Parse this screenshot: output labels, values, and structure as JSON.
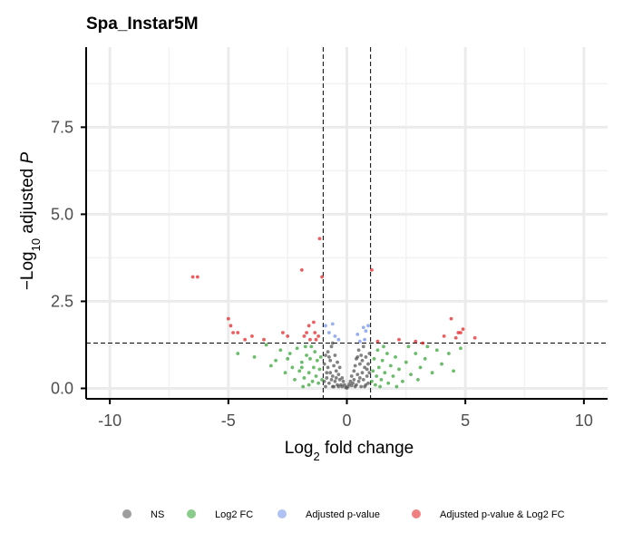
{
  "chart_data": {
    "type": "scatter",
    "title": "Spa_Instar5M",
    "xlabel": "Log",
    "xlabel_sub": "2",
    "xlabel_suffix": " fold change",
    "ylabel_prefix": "−Log",
    "ylabel_sub": "10",
    "ylabel_middle": " adjusted ",
    "ylabel_italic": "P",
    "xlim": [
      -11,
      11
    ],
    "ylim": [
      -0.3,
      9.8
    ],
    "x_ticks": [
      -10,
      -5,
      0,
      5,
      10
    ],
    "x_tick_labels": [
      "-10",
      "-5",
      "0",
      "5",
      "10"
    ],
    "y_ticks": [
      0,
      2.5,
      5,
      7.5
    ],
    "y_tick_labels": [
      "0.0",
      "2.5",
      "5.0",
      "7.5"
    ],
    "fc_cutoff": 1,
    "p_cutoff": 1.3,
    "grid": true,
    "legend_position": "bottom",
    "legend": [
      {
        "key": "NS",
        "label": "NS",
        "color": "#4d4d4d"
      },
      {
        "key": "FC",
        "label": "Log2 FC",
        "color": "#2ca02c"
      },
      {
        "key": "P",
        "label": "Adjusted p-value",
        "color": "#6b8ee8"
      },
      {
        "key": "FCP",
        "label": "Adjusted p-value & Log2 FC",
        "color": "#e31a1c"
      }
    ],
    "series": [
      {
        "key": "FCP",
        "points": [
          [
            -6.5,
            3.2
          ],
          [
            -6.3,
            3.2
          ],
          [
            -5.0,
            2.0
          ],
          [
            -4.9,
            1.8
          ],
          [
            -4.8,
            1.6
          ],
          [
            -4.6,
            1.6
          ],
          [
            -4.3,
            1.4
          ],
          [
            -4.0,
            1.5
          ],
          [
            -3.5,
            1.4
          ],
          [
            -2.7,
            1.6
          ],
          [
            -2.5,
            1.5
          ],
          [
            -1.9,
            3.4
          ],
          [
            -1.7,
            1.6
          ],
          [
            -1.6,
            1.8
          ],
          [
            -1.55,
            1.4
          ],
          [
            -1.4,
            1.9
          ],
          [
            -1.35,
            1.6
          ],
          [
            -1.2,
            1.5
          ],
          [
            -1.15,
            4.3
          ],
          [
            -1.05,
            3.2
          ],
          [
            -1.3,
            1.4
          ],
          [
            -1.8,
            1.5
          ],
          [
            1.05,
            3.4
          ],
          [
            2.2,
            1.4
          ],
          [
            2.9,
            1.35
          ],
          [
            3.2,
            1.3
          ],
          [
            4.1,
            1.5
          ],
          [
            4.4,
            2.0
          ],
          [
            4.7,
            1.6
          ],
          [
            4.8,
            1.6
          ],
          [
            4.9,
            1.7
          ],
          [
            4.6,
            1.45
          ],
          [
            5.4,
            1.45
          ],
          [
            1.3,
            1.35
          ]
        ]
      },
      {
        "key": "P",
        "points": [
          [
            -0.9,
            1.8
          ],
          [
            -0.75,
            1.6
          ],
          [
            -0.6,
            1.85
          ],
          [
            -0.5,
            1.5
          ],
          [
            -0.35,
            1.4
          ],
          [
            0.45,
            1.55
          ],
          [
            0.7,
            1.75
          ],
          [
            0.8,
            1.65
          ],
          [
            0.9,
            1.8
          ],
          [
            0.55,
            1.35
          ],
          [
            0.75,
            1.4
          ]
        ]
      },
      {
        "key": "FC",
        "points": [
          [
            -4.6,
            1.0
          ],
          [
            -3.9,
            0.9
          ],
          [
            -3.4,
            1.25
          ],
          [
            -3.0,
            0.8
          ],
          [
            -2.8,
            1.1
          ],
          [
            -2.5,
            0.85
          ],
          [
            -2.3,
            0.6
          ],
          [
            -2.1,
            1.15
          ],
          [
            -2.0,
            0.5
          ],
          [
            -1.9,
            0.75
          ],
          [
            -1.8,
            0.3
          ],
          [
            -1.7,
            0.95
          ],
          [
            -1.6,
            0.45
          ],
          [
            -1.5,
            1.2
          ],
          [
            -1.45,
            0.2
          ],
          [
            -1.4,
            0.6
          ],
          [
            -1.3,
            0.35
          ],
          [
            -1.25,
            0.8
          ],
          [
            -1.2,
            0.15
          ],
          [
            -1.15,
            0.55
          ],
          [
            -1.1,
            0.9
          ],
          [
            -1.05,
            0.25
          ],
          [
            -1.6,
            0.1
          ],
          [
            -2.2,
            0.25
          ],
          [
            -2.6,
            0.45
          ],
          [
            -1.85,
            0.05
          ],
          [
            -1.35,
            1.05
          ],
          [
            -1.75,
            1.2
          ],
          [
            -2.4,
            1.0
          ],
          [
            -3.2,
            0.65
          ],
          [
            -1.9,
            0.6
          ],
          [
            -1.55,
            0.85
          ],
          [
            1.05,
            0.2
          ],
          [
            1.1,
            0.5
          ],
          [
            1.15,
            0.85
          ],
          [
            1.2,
            0.1
          ],
          [
            1.25,
            0.35
          ],
          [
            1.3,
            1.1
          ],
          [
            1.35,
            0.6
          ],
          [
            1.45,
            0.25
          ],
          [
            1.5,
            0.8
          ],
          [
            1.6,
            0.45
          ],
          [
            1.7,
            1.0
          ],
          [
            1.75,
            0.15
          ],
          [
            1.85,
            0.65
          ],
          [
            1.95,
            0.35
          ],
          [
            2.05,
            0.9
          ],
          [
            2.2,
            0.55
          ],
          [
            2.35,
            0.2
          ],
          [
            2.5,
            0.75
          ],
          [
            2.7,
            0.4
          ],
          [
            2.9,
            1.0
          ],
          [
            3.1,
            0.6
          ],
          [
            3.3,
            0.85
          ],
          [
            3.6,
            0.45
          ],
          [
            3.8,
            1.1
          ],
          [
            4.0,
            0.7
          ],
          [
            4.3,
            1.0
          ],
          [
            4.5,
            0.5
          ],
          [
            4.8,
            1.15
          ],
          [
            2.1,
            0.05
          ],
          [
            1.55,
            1.2
          ],
          [
            1.4,
            0.05
          ],
          [
            2.6,
            1.2
          ],
          [
            3.0,
            0.25
          ],
          [
            3.4,
            1.2
          ]
        ]
      },
      {
        "key": "NS",
        "points": [
          [
            -0.9,
            0.05
          ],
          [
            -0.85,
            0.3
          ],
          [
            -0.8,
            0.6
          ],
          [
            -0.8,
            1.05
          ],
          [
            -0.75,
            0.15
          ],
          [
            -0.7,
            0.45
          ],
          [
            -0.7,
            0.8
          ],
          [
            -0.65,
            1.2
          ],
          [
            -0.6,
            0.05
          ],
          [
            -0.6,
            0.35
          ],
          [
            -0.55,
            0.65
          ],
          [
            -0.5,
            0.95
          ],
          [
            -0.5,
            0.2
          ],
          [
            -0.45,
            0.5
          ],
          [
            -0.4,
            0.75
          ],
          [
            -0.4,
            0.1
          ],
          [
            -0.35,
            0.4
          ],
          [
            -0.3,
            0.25
          ],
          [
            -0.3,
            0.6
          ],
          [
            -0.25,
            0.1
          ],
          [
            -0.2,
            0.3
          ],
          [
            -0.2,
            0.05
          ],
          [
            -0.15,
            0.2
          ],
          [
            -0.1,
            0.1
          ],
          [
            -0.05,
            0.03
          ],
          [
            0.0,
            0.01
          ],
          [
            0.05,
            0.05
          ],
          [
            0.1,
            0.12
          ],
          [
            0.15,
            0.2
          ],
          [
            0.2,
            0.08
          ],
          [
            0.2,
            0.35
          ],
          [
            0.25,
            0.15
          ],
          [
            0.3,
            0.5
          ],
          [
            0.3,
            0.25
          ],
          [
            0.35,
            0.65
          ],
          [
            0.4,
            0.1
          ],
          [
            0.4,
            0.85
          ],
          [
            0.45,
            0.4
          ],
          [
            0.5,
            1.1
          ],
          [
            0.5,
            0.2
          ],
          [
            0.55,
            0.7
          ],
          [
            0.6,
            0.05
          ],
          [
            0.6,
            0.95
          ],
          [
            0.65,
            0.45
          ],
          [
            0.7,
            1.2
          ],
          [
            0.7,
            0.25
          ],
          [
            0.75,
            0.6
          ],
          [
            0.8,
            0.1
          ],
          [
            0.8,
            0.9
          ],
          [
            0.85,
            0.35
          ],
          [
            0.9,
            0.7
          ],
          [
            0.9,
            0.15
          ],
          [
            0.95,
            1.0
          ],
          [
            0.95,
            0.45
          ],
          [
            -0.95,
            0.7
          ],
          [
            -0.95,
            0.2
          ],
          [
            -0.9,
            0.95
          ],
          [
            -0.85,
            0.45
          ],
          [
            -0.65,
            0.25
          ],
          [
            -0.55,
            0.05
          ],
          [
            -0.35,
            0.05
          ],
          [
            0.35,
            0.05
          ],
          [
            0.55,
            0.3
          ],
          [
            0.65,
            0.8
          ],
          [
            0.75,
            0.05
          ],
          [
            0.85,
            0.55
          ],
          [
            -0.75,
            0.9
          ],
          [
            -0.45,
            0.3
          ],
          [
            0.45,
            0.9
          ],
          [
            -0.6,
            1.3
          ]
        ]
      }
    ]
  }
}
